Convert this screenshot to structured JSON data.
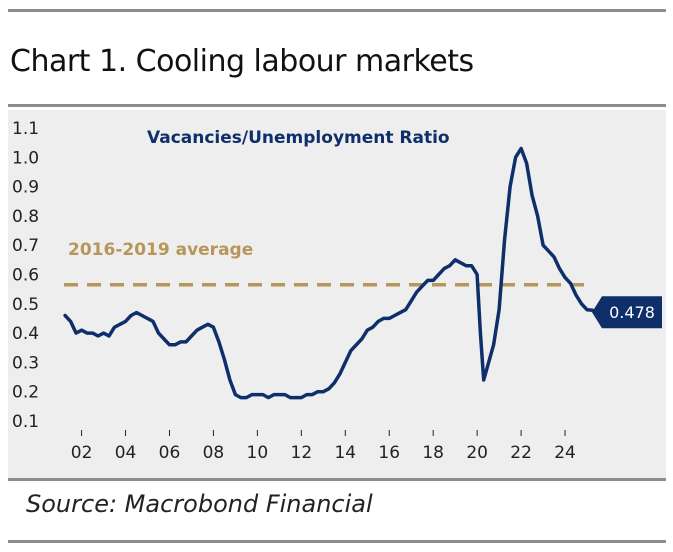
{
  "title": "Chart 1. Cooling labour markets",
  "source": "Source: Macrobond Financial",
  "colors": {
    "line": "#0f2f6b",
    "average": "#b8955a",
    "background": "#eeeeee",
    "rule": "#8c8c8c"
  },
  "chart_data": {
    "type": "line",
    "grid": false,
    "legend": "none",
    "ylim": [
      0.1,
      1.1
    ],
    "xlim": [
      2001.2,
      2025.5
    ],
    "y_ticks": [
      "1.1",
      "1.0",
      "0.9",
      "0.8",
      "0.7",
      "0.6",
      "0.5",
      "0.4",
      "0.3",
      "0.2",
      "0.1"
    ],
    "x_ticks": [
      "02",
      "04",
      "06",
      "08",
      "10",
      "12",
      "14",
      "16",
      "18",
      "20",
      "22",
      "24"
    ],
    "series": [
      {
        "name": "Vacancies/Unemployment Ratio",
        "x": [
          2001.25,
          2001.5,
          2001.75,
          2002.0,
          2002.25,
          2002.5,
          2002.75,
          2003.0,
          2003.25,
          2003.5,
          2003.75,
          2004.0,
          2004.25,
          2004.5,
          2004.75,
          2005.0,
          2005.25,
          2005.5,
          2005.75,
          2006.0,
          2006.25,
          2006.5,
          2006.75,
          2007.0,
          2007.25,
          2007.5,
          2007.75,
          2008.0,
          2008.25,
          2008.5,
          2008.75,
          2009.0,
          2009.25,
          2009.5,
          2009.75,
          2010.0,
          2010.25,
          2010.5,
          2010.75,
          2011.0,
          2011.25,
          2011.5,
          2011.75,
          2012.0,
          2012.25,
          2012.5,
          2012.75,
          2013.0,
          2013.25,
          2013.5,
          2013.75,
          2014.0,
          2014.25,
          2014.5,
          2014.75,
          2015.0,
          2015.25,
          2015.5,
          2015.75,
          2016.0,
          2016.25,
          2016.5,
          2016.75,
          2017.0,
          2017.25,
          2017.5,
          2017.75,
          2018.0,
          2018.25,
          2018.5,
          2018.75,
          2019.0,
          2019.25,
          2019.5,
          2019.75,
          2020.0,
          2020.15,
          2020.3,
          2020.45,
          2020.6,
          2020.75,
          2021.0,
          2021.25,
          2021.5,
          2021.75,
          2022.0,
          2022.25,
          2022.5,
          2022.75,
          2023.0,
          2023.25,
          2023.5,
          2023.75,
          2024.0,
          2024.25,
          2024.5,
          2024.75,
          2025.0,
          2025.25
        ],
        "values": [
          0.46,
          0.44,
          0.4,
          0.41,
          0.4,
          0.4,
          0.39,
          0.4,
          0.39,
          0.42,
          0.43,
          0.44,
          0.46,
          0.47,
          0.46,
          0.45,
          0.44,
          0.4,
          0.38,
          0.36,
          0.36,
          0.37,
          0.37,
          0.39,
          0.41,
          0.42,
          0.43,
          0.42,
          0.37,
          0.31,
          0.24,
          0.19,
          0.18,
          0.18,
          0.19,
          0.19,
          0.19,
          0.18,
          0.19,
          0.19,
          0.19,
          0.18,
          0.18,
          0.18,
          0.19,
          0.19,
          0.2,
          0.2,
          0.21,
          0.23,
          0.26,
          0.3,
          0.34,
          0.36,
          0.38,
          0.41,
          0.42,
          0.44,
          0.45,
          0.45,
          0.46,
          0.47,
          0.48,
          0.51,
          0.54,
          0.56,
          0.58,
          0.58,
          0.6,
          0.62,
          0.63,
          0.65,
          0.64,
          0.63,
          0.63,
          0.6,
          0.4,
          0.24,
          0.28,
          0.32,
          0.36,
          0.48,
          0.72,
          0.9,
          1.0,
          1.03,
          0.98,
          0.87,
          0.8,
          0.7,
          0.68,
          0.66,
          0.62,
          0.59,
          0.57,
          0.53,
          0.5,
          0.48,
          0.478
        ]
      }
    ],
    "series_label": "Vacancies/Unemployment Ratio",
    "reference_line": {
      "label": "2016-2019 average",
      "value": 0.565
    },
    "last_value_label": "0.478"
  }
}
